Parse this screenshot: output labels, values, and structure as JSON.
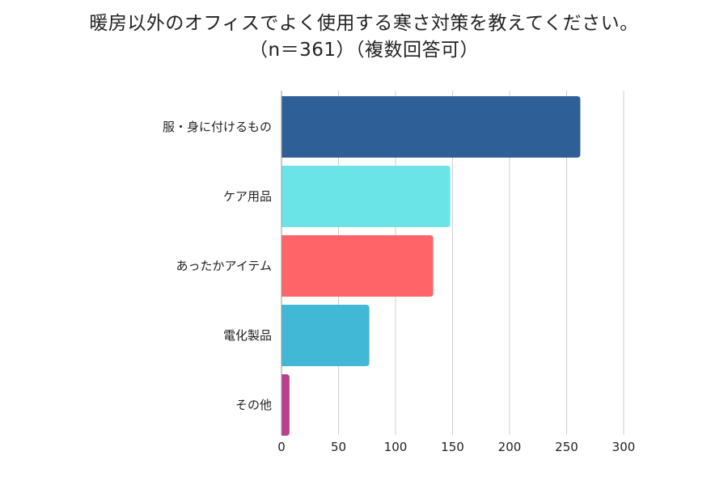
{
  "chart_data": {
    "type": "bar",
    "orientation": "horizontal",
    "title": "暖房以外のオフィスでよく使用する寒さ対策を教えてください。",
    "subtitle": "（n＝361）（複数回答可）",
    "categories": [
      "服・身に付けるもの",
      "ケア用品",
      "あったかアイテム",
      "電化製品",
      "その他"
    ],
    "values": [
      262,
      148,
      133,
      77,
      7
    ],
    "colors": [
      "#2E6097",
      "#6BE4E8",
      "#FF6568",
      "#40B8D6",
      "#B8408F"
    ],
    "xlim": [
      0,
      300
    ],
    "xticks": [
      0,
      50,
      100,
      150,
      200,
      250,
      300
    ],
    "grid": "vertical",
    "xlabel": "",
    "ylabel": ""
  }
}
